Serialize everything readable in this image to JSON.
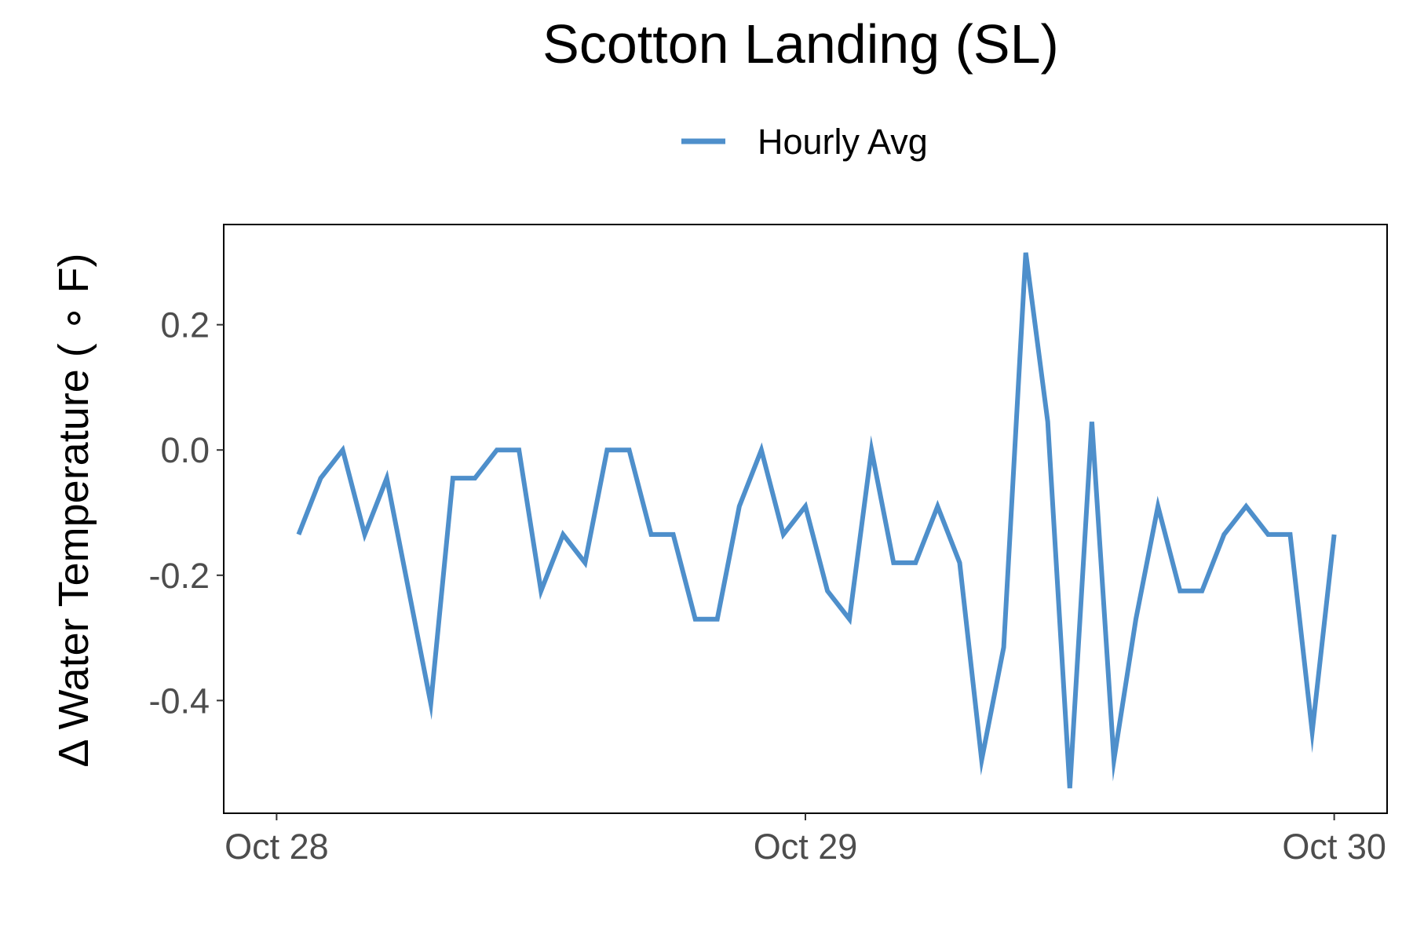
{
  "chart_data": {
    "type": "line",
    "title": "Scotton Landing (SL)",
    "ylabel": "Δ Water Temperature ( ∘ F)",
    "xlabel": "",
    "legend": {
      "position": "top",
      "entries": [
        "Hourly Avg"
      ]
    },
    "grid": false,
    "x_ticks": [
      "Oct 28",
      "Oct 29",
      "Oct 30"
    ],
    "y_ticks": [
      "0.2",
      "0.0",
      "-0.2",
      "-0.4"
    ],
    "y_tick_values": [
      0.2,
      0.0,
      -0.2,
      -0.4
    ],
    "ylim": [
      -0.58,
      0.36
    ],
    "xlim_days": [
      -0.1,
      2.1
    ],
    "series": [
      {
        "name": "Hourly Avg",
        "color": "#4E8FCB",
        "x_days": [
          0.04167,
          0.08333,
          0.125,
          0.16667,
          0.20833,
          0.25,
          0.29167,
          0.33333,
          0.375,
          0.41667,
          0.45833,
          0.5,
          0.54167,
          0.58333,
          0.625,
          0.66667,
          0.70833,
          0.75,
          0.79167,
          0.83333,
          0.875,
          0.91667,
          0.95833,
          1.0,
          1.04167,
          1.08333,
          1.125,
          1.16667,
          1.20833,
          1.25,
          1.29167,
          1.33333,
          1.375,
          1.41667,
          1.45833,
          1.5,
          1.54167,
          1.58333,
          1.625,
          1.66667,
          1.70833,
          1.75,
          1.79167,
          1.83333,
          1.875,
          1.91667,
          1.95833,
          2.0
        ],
        "values": [
          -0.135,
          -0.045,
          0.0,
          -0.135,
          -0.045,
          -0.225,
          -0.405,
          -0.045,
          -0.045,
          0.0,
          0.0,
          -0.225,
          -0.135,
          -0.18,
          0.0,
          0.0,
          -0.135,
          -0.135,
          -0.27,
          -0.27,
          -0.09,
          0.0,
          -0.135,
          -0.09,
          -0.225,
          -0.27,
          0.0,
          -0.18,
          -0.18,
          -0.09,
          -0.18,
          -0.495,
          -0.315,
          0.315,
          0.045,
          -0.54,
          0.045,
          -0.495,
          -0.27,
          -0.09,
          -0.225,
          -0.225,
          -0.135,
          -0.09,
          -0.135,
          -0.135,
          -0.45,
          -0.135
        ]
      }
    ]
  }
}
